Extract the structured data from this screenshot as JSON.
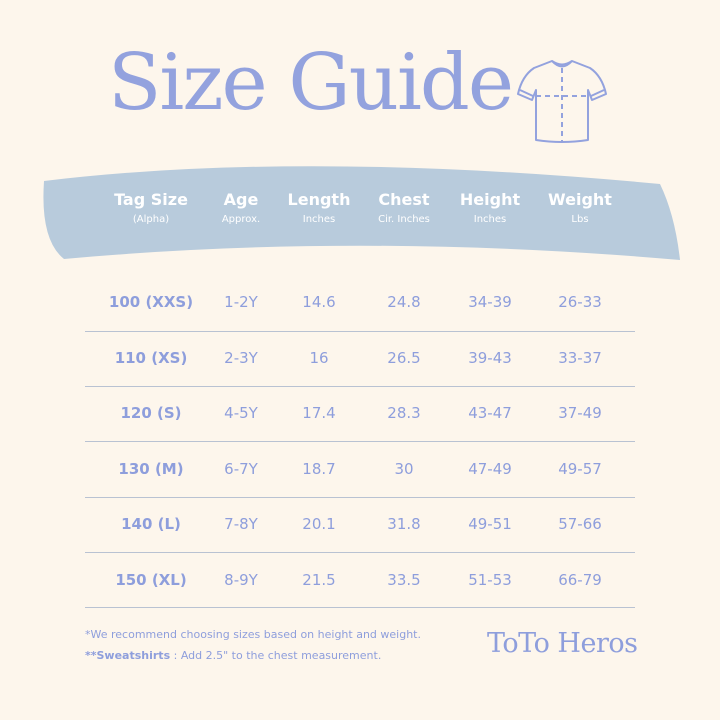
{
  "title": "Size Guide",
  "icons": {
    "shirt": "t-shirt-icon"
  },
  "colors": {
    "background": "#fdf6ec",
    "accent": "#8e9edc",
    "banner": "#b8cbdc"
  },
  "table": {
    "headers": [
      {
        "label": "Tag Size",
        "sub": "(Alpha)"
      },
      {
        "label": "Age",
        "sub": "Approx."
      },
      {
        "label": "Length",
        "sub": "Inches"
      },
      {
        "label": "Chest",
        "sub": "Cir. Inches"
      },
      {
        "label": "Height",
        "sub": "Inches"
      },
      {
        "label": "Weight",
        "sub": "Lbs"
      }
    ],
    "rows": [
      [
        "100 (XXS)",
        "1-2Y",
        "14.6",
        "24.8",
        "34-39",
        "26-33"
      ],
      [
        "110 (XS)",
        "2-3Y",
        "16",
        "26.5",
        "39-43",
        "33-37"
      ],
      [
        "120 (S)",
        "4-5Y",
        "17.4",
        "28.3",
        "43-47",
        "37-49"
      ],
      [
        "130 (M)",
        "6-7Y",
        "18.7",
        "30",
        "47-49",
        "49-57"
      ],
      [
        "140 (L)",
        "7-8Y",
        "20.1",
        "31.8",
        "49-51",
        "57-66"
      ],
      [
        "150 (XL)",
        "8-9Y",
        "21.5",
        "33.5",
        "51-53",
        "66-79"
      ]
    ]
  },
  "notes": {
    "recommend": "*We recommend choosing sizes based on height and weight.",
    "sweat_label": "**Sweatshirts",
    "sweat_text": " : Add 2.5\" to the chest measurement."
  },
  "brand": "ToTo Heros"
}
